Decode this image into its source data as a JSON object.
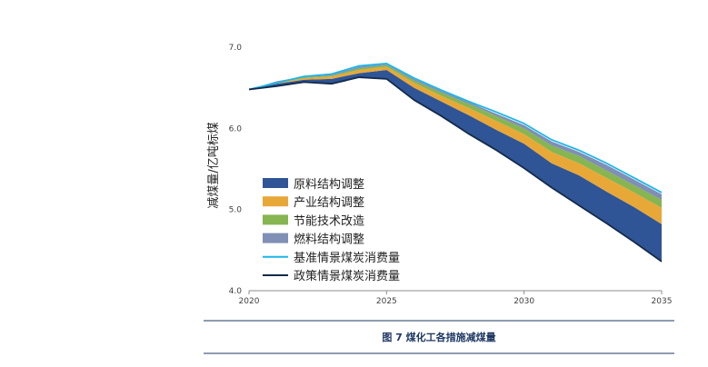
{
  "figure": {
    "caption": "图 7 煤化工各措施减煤量"
  },
  "chart_data": {
    "type": "area",
    "title": "",
    "xlabel": "",
    "ylabel": "减煤量/亿吨标煤",
    "xlim": [
      2020,
      2035
    ],
    "ylim": [
      4.0,
      7.0
    ],
    "xticks": [
      "2020",
      "2025",
      "2030",
      "2035"
    ],
    "yticks": [
      "4.0",
      "5.0",
      "6.0",
      "7.0"
    ],
    "grid": false,
    "legend_position": "center-left",
    "x": [
      2020,
      2021,
      2022,
      2023,
      2024,
      2025,
      2026,
      2027,
      2028,
      2029,
      2030,
      2031,
      2032,
      2033,
      2034,
      2035
    ],
    "series": [
      {
        "name": "原料结构调整",
        "kind": "band",
        "color": "#2f5596",
        "lower": [
          6.48,
          6.52,
          6.57,
          6.55,
          6.63,
          6.61,
          6.35,
          6.15,
          5.93,
          5.73,
          5.51,
          5.27,
          5.05,
          4.83,
          4.6,
          4.36
        ],
        "upper": [
          6.48,
          6.55,
          6.6,
          6.61,
          6.68,
          6.72,
          6.5,
          6.33,
          6.16,
          5.98,
          5.81,
          5.57,
          5.42,
          5.22,
          5.03,
          4.82
        ]
      },
      {
        "name": "产业结构调整",
        "kind": "band",
        "color": "#e8a838",
        "lower": [
          6.48,
          6.55,
          6.6,
          6.61,
          6.68,
          6.72,
          6.5,
          6.33,
          6.16,
          5.98,
          5.81,
          5.57,
          5.42,
          5.22,
          5.03,
          4.82
        ],
        "upper": [
          6.48,
          6.56,
          6.62,
          6.64,
          6.72,
          6.76,
          6.56,
          6.4,
          6.25,
          6.09,
          5.93,
          5.71,
          5.57,
          5.39,
          5.21,
          5.02
        ]
      },
      {
        "name": "节能技术改造",
        "kind": "band",
        "color": "#86b552",
        "lower": [
          6.48,
          6.56,
          6.62,
          6.64,
          6.72,
          6.76,
          6.56,
          6.4,
          6.25,
          6.09,
          5.93,
          5.71,
          5.57,
          5.39,
          5.21,
          5.02
        ],
        "upper": [
          6.48,
          6.57,
          6.63,
          6.65,
          6.74,
          6.78,
          6.59,
          6.44,
          6.3,
          6.15,
          6.0,
          5.79,
          5.66,
          5.48,
          5.3,
          5.12
        ]
      },
      {
        "name": "燃料结构调整",
        "kind": "band",
        "color": "#7f8fb5",
        "lower": [
          6.48,
          6.57,
          6.63,
          6.65,
          6.74,
          6.78,
          6.59,
          6.44,
          6.3,
          6.15,
          6.0,
          5.79,
          5.66,
          5.48,
          5.3,
          5.12
        ],
        "upper": [
          6.48,
          6.58,
          6.64,
          6.66,
          6.76,
          6.79,
          6.61,
          6.46,
          6.32,
          6.18,
          6.04,
          5.84,
          5.71,
          5.55,
          5.37,
          5.19
        ]
      },
      {
        "name": "基准情景煤炭消费量",
        "kind": "line",
        "color": "#1cb6e8",
        "values": [
          6.48,
          6.56,
          6.64,
          6.67,
          6.77,
          6.8,
          6.62,
          6.47,
          6.33,
          6.2,
          6.06,
          5.86,
          5.73,
          5.57,
          5.39,
          5.21
        ]
      },
      {
        "name": "政策情景煤炭消费量",
        "kind": "line",
        "color": "#132a4a",
        "values": [
          6.48,
          6.52,
          6.57,
          6.55,
          6.63,
          6.61,
          6.35,
          6.15,
          5.93,
          5.73,
          5.51,
          5.27,
          5.05,
          4.83,
          4.6,
          4.36
        ]
      }
    ]
  }
}
